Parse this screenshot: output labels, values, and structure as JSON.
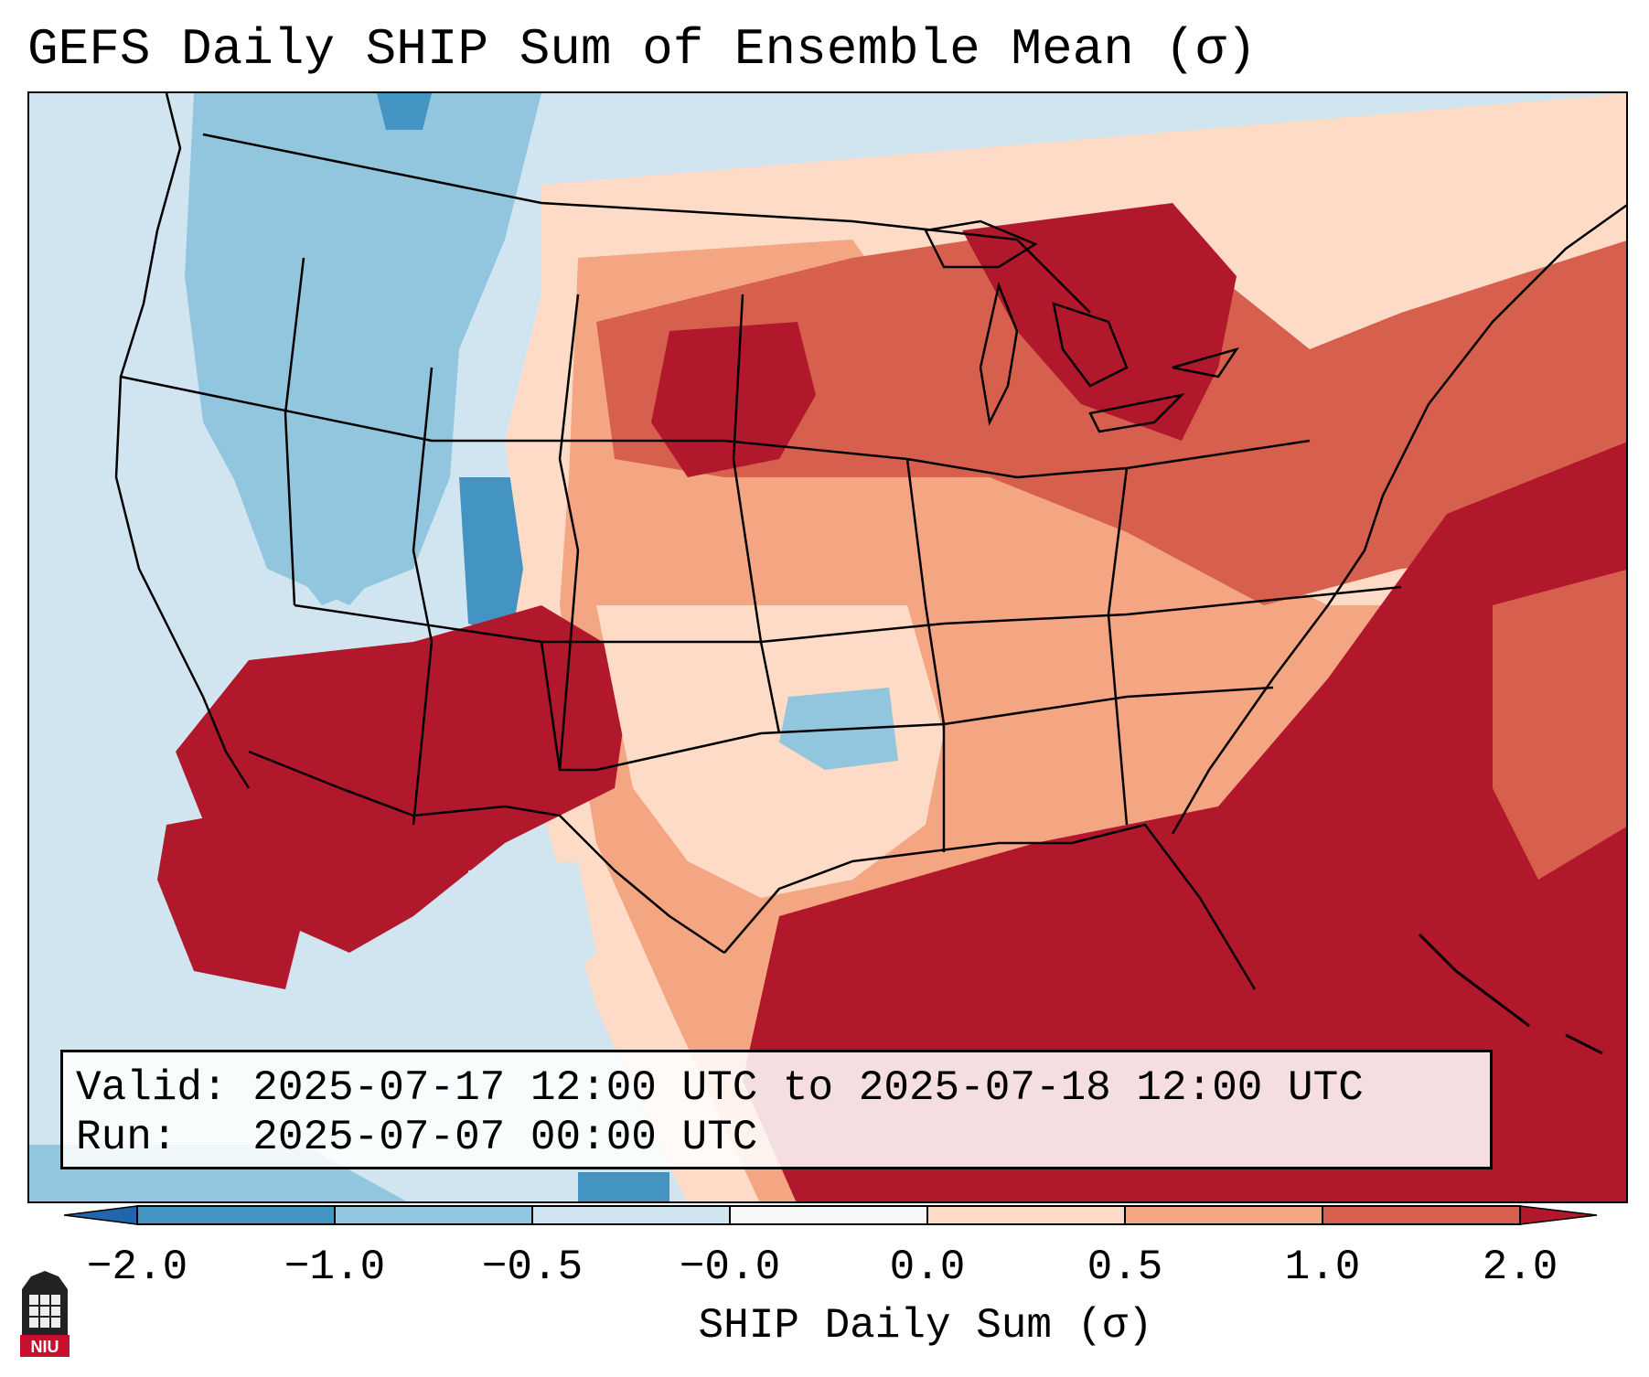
{
  "title": "GEFS Daily SHIP Sum of Ensemble Mean (σ)",
  "valid_line": "Valid: 2025-07-17 12:00 UTC to 2025-07-18 12:00 UTC",
  "run_line": "Run:   2025-07-07 00:00 UTC",
  "colorbar": {
    "label": "SHIP Daily Sum (σ)",
    "ticks": [
      "−2.0",
      "−1.0",
      "−0.5",
      "−0.0",
      "0.0",
      "0.5",
      "1.0",
      "2.0"
    ],
    "colors": [
      "#4393c3",
      "#92c5de",
      "#d1e5f0",
      "#f7f7f7",
      "#fddbc7",
      "#f4a582",
      "#d6604d",
      "#b2182b"
    ],
    "under_color": "#2166ac",
    "over_color": "#b2182b"
  },
  "logo": {
    "text": "NIU"
  },
  "map": {
    "palette": {
      "ocean_west": "#d1e5f0",
      "blue_strong": "#4393c3",
      "blue_mid": "#92c5de",
      "blue_light": "#d1e5f0",
      "red_light": "#fddbc7",
      "red_mid": "#f4a582",
      "red_strong": "#d6604d",
      "red_dark": "#b2182b",
      "border": "#000000"
    }
  }
}
